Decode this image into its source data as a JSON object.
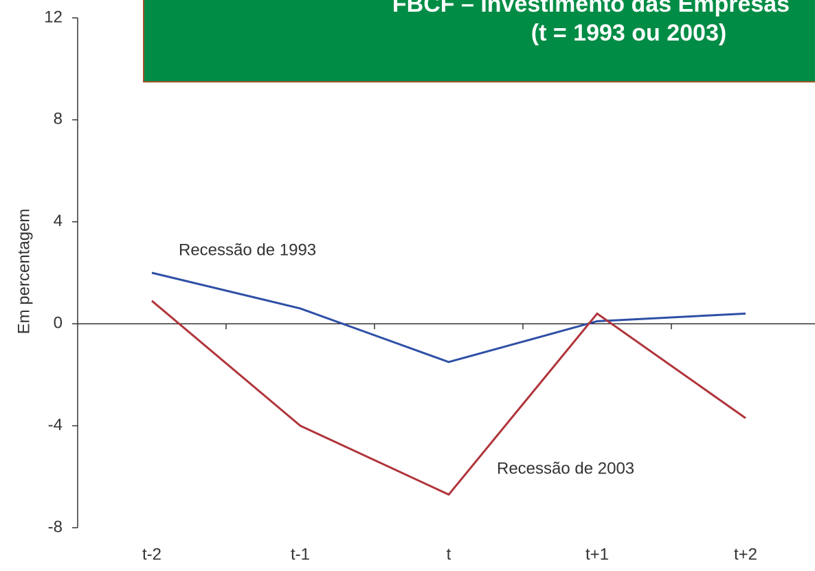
{
  "chart_data": {
    "type": "line",
    "title": "FBCF – Investimento das Empresas",
    "subtitle": "(t = 1993 ou 2003)",
    "y_label": "Em percentagem",
    "categories": [
      "t-2",
      "t-1",
      "t",
      "t+1",
      "t+2"
    ],
    "series": [
      {
        "name": "Recessão de 1993",
        "color": "#2e4fa6",
        "values": [
          2.0,
          0.6,
          -1.5,
          0.1,
          0.4
        ]
      },
      {
        "name": "Recessão de 2003",
        "color": "#b0343a",
        "values": [
          0.9,
          -4.0,
          -6.7,
          0.4,
          -3.7
        ]
      }
    ],
    "ylim": [
      -8,
      12
    ],
    "yticks": [
      -8,
      -4,
      0,
      4,
      8,
      12
    ]
  }
}
